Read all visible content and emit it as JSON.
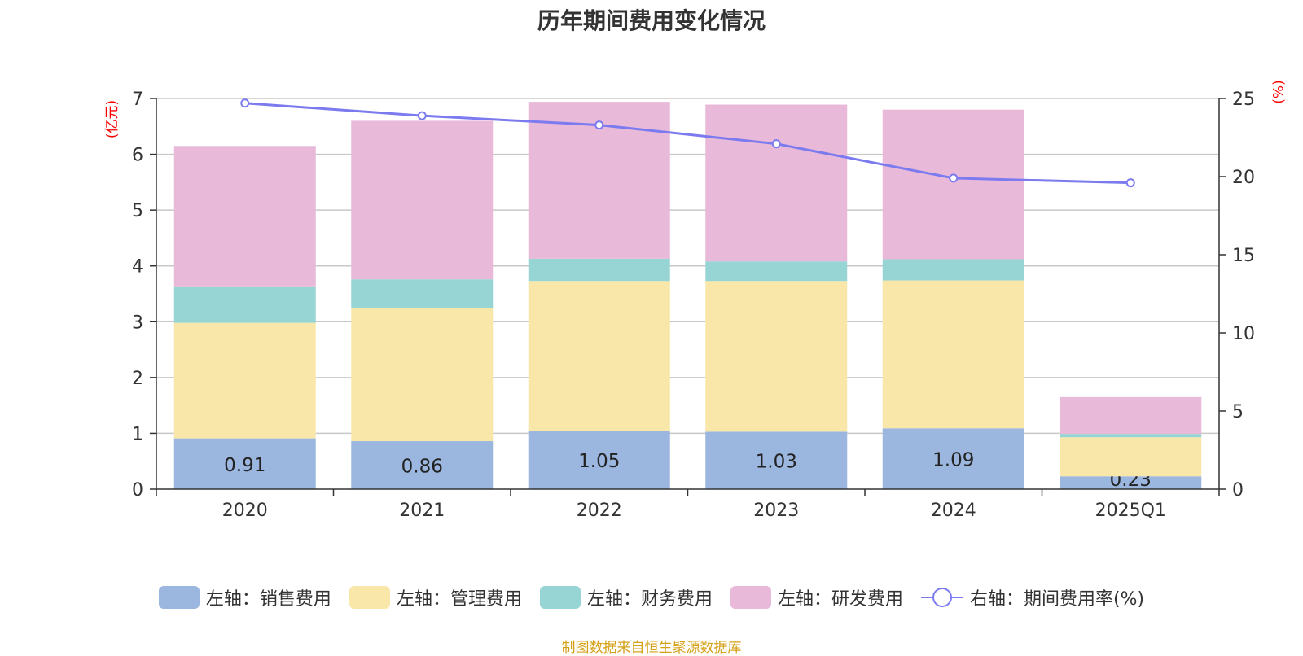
{
  "chart_data": {
    "type": "bar",
    "title": "历年期间费用变化情况",
    "categories": [
      "2020",
      "2021",
      "2022",
      "2023",
      "2024",
      "2025Q1"
    ],
    "left_axis": {
      "unit_label": "(亿元)",
      "ylim": [
        0,
        7
      ],
      "ticks": [
        "0",
        "1",
        "2",
        "3",
        "4",
        "5",
        "6",
        "7"
      ]
    },
    "right_axis": {
      "unit_label": "(%)",
      "ylim": [
        0,
        25
      ],
      "ticks": [
        "0",
        "5",
        "10",
        "15",
        "20",
        "25"
      ]
    },
    "series": [
      {
        "name": "左轴：销售费用",
        "axis": "left",
        "color": "#9bb7e0",
        "values": [
          0.91,
          0.86,
          1.05,
          1.03,
          1.09,
          0.23
        ],
        "labels": [
          "0.91",
          "0.86",
          "1.05",
          "1.03",
          "1.09",
          "0.23"
        ]
      },
      {
        "name": "左轴：管理费用",
        "axis": "left",
        "color": "#f8e7a8",
        "values": [
          2.07,
          2.38,
          2.68,
          2.7,
          2.65,
          0.7
        ]
      },
      {
        "name": "左轴：财务费用",
        "axis": "left",
        "color": "#97d5d5",
        "values": [
          0.64,
          0.52,
          0.4,
          0.35,
          0.38,
          0.06
        ]
      },
      {
        "name": "左轴：研发费用",
        "axis": "left",
        "color": "#e8b9d9",
        "values": [
          2.53,
          2.84,
          2.81,
          2.81,
          2.68,
          0.66
        ]
      },
      {
        "name": "右轴：期间费用率(%)",
        "axis": "right",
        "type": "line",
        "color": "#7b7bef",
        "values": [
          24.7,
          23.9,
          23.3,
          22.1,
          19.9,
          19.6
        ]
      }
    ],
    "grid": true,
    "legend_position": "bottom"
  },
  "source": "制图数据来自恒生聚源数据库"
}
